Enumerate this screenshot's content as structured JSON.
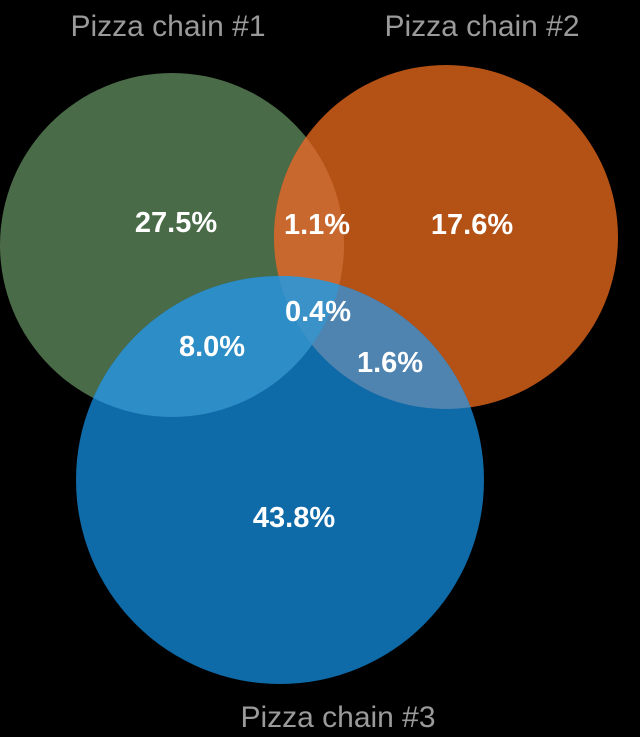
{
  "diagram": {
    "type": "venn",
    "sets": [
      {
        "id": "a",
        "label": "Pizza chain #1",
        "color": "#4a6b48"
      },
      {
        "id": "b",
        "label": "Pizza chain #2",
        "color": "#b45115"
      },
      {
        "id": "c",
        "label": "Pizza chain #3",
        "color": "#0f6aa8"
      }
    ],
    "regions": {
      "a_only": "27.5%",
      "b_only": "17.6%",
      "c_only": "43.8%",
      "ab": "1.1%",
      "ac": "8.0%",
      "bc": "1.6%",
      "abc": "0.4%"
    },
    "overlap_colors": {
      "ab": "#c8682f",
      "ac": "#2d8dc6",
      "bc": "#4f83b0",
      "abc": "#3a92c8"
    }
  }
}
